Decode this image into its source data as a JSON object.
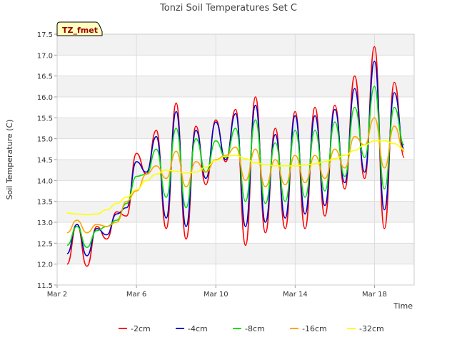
{
  "chart_data": {
    "type": "line",
    "title": "Tonzi Soil Temperatures Set C",
    "xlabel": "Time",
    "ylabel": "Soil Temperature (C)",
    "badge": "TZ_fmet",
    "xlim": [
      2.0,
      20.0
    ],
    "ylim": [
      11.5,
      17.5
    ],
    "x_ticks": [
      {
        "value": 2,
        "label": "Mar 2"
      },
      {
        "value": 6,
        "label": "Mar 6"
      },
      {
        "value": 10,
        "label": "Mar 10"
      },
      {
        "value": 14,
        "label": "Mar 14"
      },
      {
        "value": 18,
        "label": "Mar 18"
      }
    ],
    "y_ticks": [
      11.5,
      12.0,
      12.5,
      13.0,
      13.5,
      14.0,
      14.5,
      15.0,
      15.5,
      16.0,
      16.5,
      17.0,
      17.5
    ],
    "grid": true,
    "legend_position": "bottom",
    "x_days": [
      2.5,
      3.0,
      3.5,
      4.0,
      4.5,
      5.0,
      5.5,
      6.0,
      6.5,
      7.0,
      7.5,
      8.0,
      8.5,
      9.0,
      9.5,
      10.0,
      10.5,
      11.0,
      11.5,
      12.0,
      12.5,
      13.0,
      13.5,
      14.0,
      14.5,
      15.0,
      15.5,
      16.0,
      16.5,
      17.0,
      17.5,
      18.0,
      18.5,
      19.0,
      19.5
    ],
    "series": [
      {
        "name": "-2cm",
        "color": "#ff0000",
        "peaks": [
          12.95,
          12.9,
          13.25,
          14.65,
          15.2,
          15.85,
          15.3,
          15.45,
          15.7,
          16.0,
          15.25,
          15.65,
          15.75,
          15.8,
          16.5,
          17.2,
          16.35,
          15.8
        ],
        "troughs": [
          12.0,
          11.95,
          12.6,
          13.15,
          14.15,
          12.85,
          12.6,
          13.9,
          14.45,
          12.45,
          12.75,
          12.85,
          12.85,
          13.15,
          13.8,
          14.05,
          12.85,
          14.55
        ]
      },
      {
        "name": "-4cm",
        "color": "#0000cc",
        "peaks": [
          12.95,
          12.85,
          13.2,
          14.45,
          15.05,
          15.65,
          15.2,
          15.4,
          15.6,
          15.8,
          15.1,
          15.55,
          15.55,
          15.7,
          16.2,
          16.85,
          16.1,
          15.6
        ],
        "troughs": [
          12.25,
          12.2,
          12.7,
          13.35,
          14.2,
          13.1,
          12.9,
          14.05,
          14.5,
          12.9,
          13.0,
          13.1,
          13.2,
          13.4,
          13.95,
          14.2,
          13.3,
          14.75
        ]
      },
      {
        "name": "-8cm",
        "color": "#00dd00",
        "peaks": [
          12.9,
          12.8,
          13.05,
          14.1,
          14.75,
          15.25,
          15.0,
          14.95,
          15.25,
          15.45,
          14.9,
          15.2,
          15.2,
          15.4,
          15.75,
          16.25,
          15.75,
          15.3
        ],
        "troughs": [
          12.45,
          12.4,
          12.9,
          13.45,
          14.15,
          13.6,
          13.35,
          14.2,
          14.55,
          13.5,
          13.45,
          13.5,
          13.6,
          13.75,
          14.1,
          14.55,
          13.8,
          14.85
        ]
      },
      {
        "name": "-16cm",
        "color": "#ffa500",
        "peaks": [
          13.05,
          12.95,
          13.0,
          13.75,
          14.35,
          14.7,
          14.45,
          14.5,
          14.8,
          14.75,
          14.5,
          14.6,
          14.6,
          14.75,
          15.05,
          15.5,
          15.3,
          14.9
        ],
        "troughs": [
          12.75,
          12.75,
          12.9,
          13.5,
          14.15,
          14.05,
          13.85,
          14.2,
          14.6,
          14.0,
          13.85,
          13.9,
          13.95,
          14.05,
          14.3,
          14.85,
          14.3,
          14.7
        ]
      },
      {
        "name": "-32cm",
        "color": "#ffff00",
        "values": [
          13.22,
          13.2,
          13.18,
          13.2,
          13.3,
          13.45,
          13.6,
          13.78,
          14.0,
          14.15,
          14.25,
          14.22,
          14.18,
          14.2,
          14.32,
          14.48,
          14.58,
          14.6,
          14.52,
          14.42,
          14.38,
          14.35,
          14.35,
          14.35,
          14.37,
          14.4,
          14.45,
          14.52,
          14.6,
          14.72,
          14.85,
          14.95,
          14.95,
          14.88,
          14.75
        ]
      }
    ]
  }
}
